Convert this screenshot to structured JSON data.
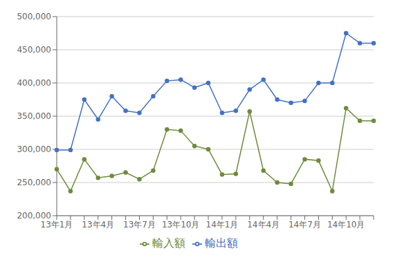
{
  "chart_data": {
    "type": "line",
    "categories": [
      "13年1月",
      null,
      null,
      "13年4月",
      null,
      null,
      "13年7月",
      null,
      null,
      "13年10月",
      null,
      null,
      "14年1月",
      null,
      null,
      "14年4月",
      null,
      null,
      "14年7月",
      null,
      null,
      "14年10月",
      null,
      null
    ],
    "series": [
      {
        "name": "輸出額",
        "color": "#4472C4",
        "marker": "circle",
        "values": [
          299000,
          299000,
          375000,
          345000,
          380000,
          358000,
          355000,
          380000,
          403000,
          405000,
          393000,
          400000,
          355000,
          358000,
          390000,
          405000,
          375000,
          370000,
          373000,
          400000,
          400000,
          475000,
          460000,
          460000
        ]
      },
      {
        "name": "輸入額",
        "color": "#6E8B3D",
        "marker": "circle",
        "values": [
          270000,
          237000,
          285000,
          257000,
          260000,
          265000,
          255000,
          268000,
          330000,
          328000,
          305000,
          300000,
          262000,
          263000,
          357000,
          268000,
          250000,
          248000,
          285000,
          283000,
          237000,
          362000,
          343000,
          343000
        ]
      }
    ],
    "ylim": [
      200000,
      500000
    ],
    "yticks": [
      {
        "value": 200000,
        "label": "200,000"
      },
      {
        "value": 250000,
        "label": "250,000"
      },
      {
        "value": 300000,
        "label": "300,000"
      },
      {
        "value": 350000,
        "label": "350,000"
      },
      {
        "value": 400000,
        "label": "400,000"
      },
      {
        "value": 450000,
        "label": "450,000"
      },
      {
        "value": 500000,
        "label": "500,000"
      }
    ],
    "grid": true,
    "legend": "bottom"
  }
}
